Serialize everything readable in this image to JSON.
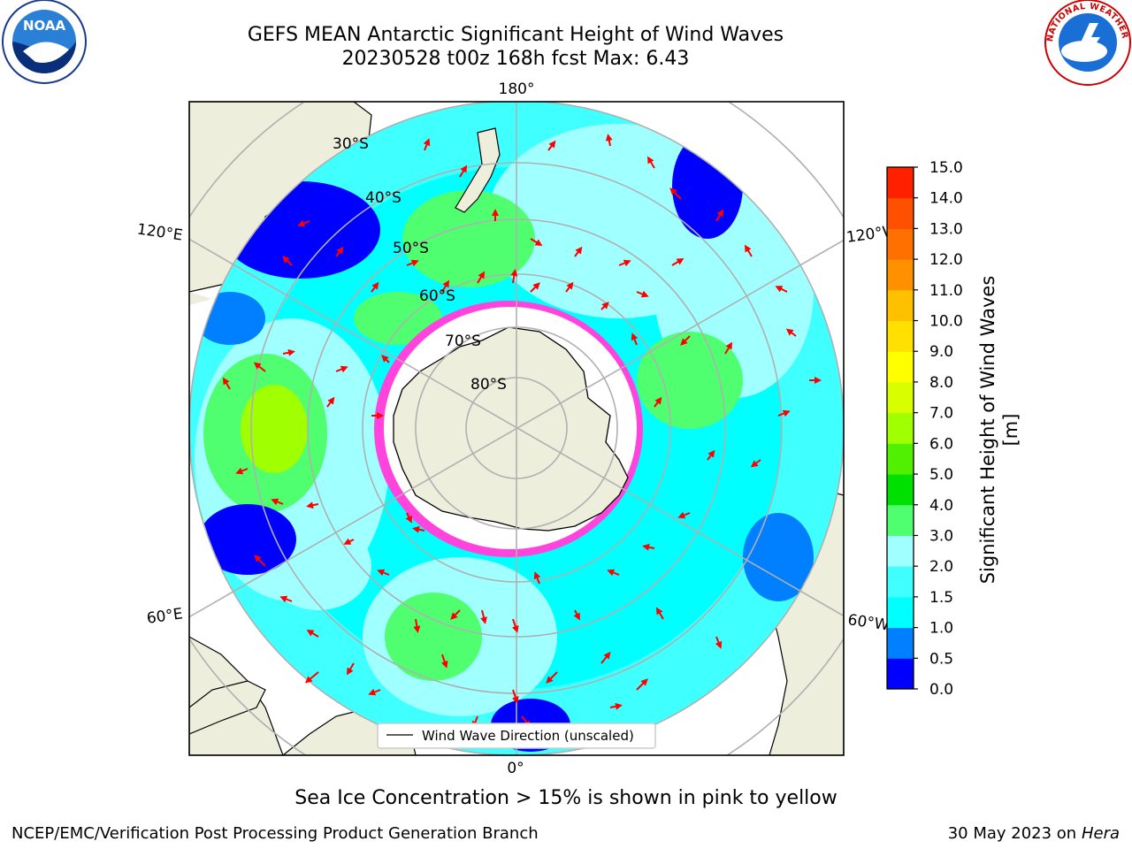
{
  "header": {
    "title_line1": "GEFS MEAN Antarctic Significant Height of Wind Waves",
    "title_line2": "20230528 t00z 168h fcst   Max: 6.43"
  },
  "logos": {
    "noaa": {
      "text": "NOAA",
      "icon": "noaa-logo-icon"
    },
    "nws": {
      "text": "NATIONAL WEATHER SERVICE",
      "icon": "nws-logo-icon"
    }
  },
  "map": {
    "longitude_labels": [
      "180°",
      "120°E",
      "60°E",
      "0°",
      "60°W",
      "120°W"
    ],
    "latitude_labels": [
      "30°S",
      "40°S",
      "50°S",
      "60°S",
      "70°S",
      "80°S"
    ],
    "legend_label": "Wind Wave Direction (unscaled)",
    "colors": {
      "land": "#eeeedd",
      "ice_free": "#ffffff",
      "ice_edge": "#ff44dd",
      "arrow": "#ff0000",
      "grid": "#b0b0b0"
    }
  },
  "colorbar": {
    "label": "Significant Height of Wind Waves [m]",
    "ticks": [
      "0.0",
      "0.5",
      "1.0",
      "1.5",
      "2.0",
      "3.0",
      "4.0",
      "5.0",
      "6.0",
      "7.0",
      "8.0",
      "9.0",
      "10.0",
      "11.0",
      "12.0",
      "13.0",
      "14.0",
      "15.0"
    ],
    "colors": [
      "#0000ff",
      "#0080ff",
      "#00ffff",
      "#40ffff",
      "#a0ffff",
      "#50ff70",
      "#00e000",
      "#50f000",
      "#a0ff00",
      "#d8ff00",
      "#ffff00",
      "#ffe000",
      "#ffc000",
      "#ff9000",
      "#ff7000",
      "#ff5000",
      "#ff2000"
    ]
  },
  "footer": {
    "note": "Sea Ice Concentration > 15% is shown in pink to yellow",
    "left": "NCEP/EMC/Verification Post Processing Product Generation Branch",
    "right_date": "30 May 2023 on",
    "right_host": "Hera"
  }
}
